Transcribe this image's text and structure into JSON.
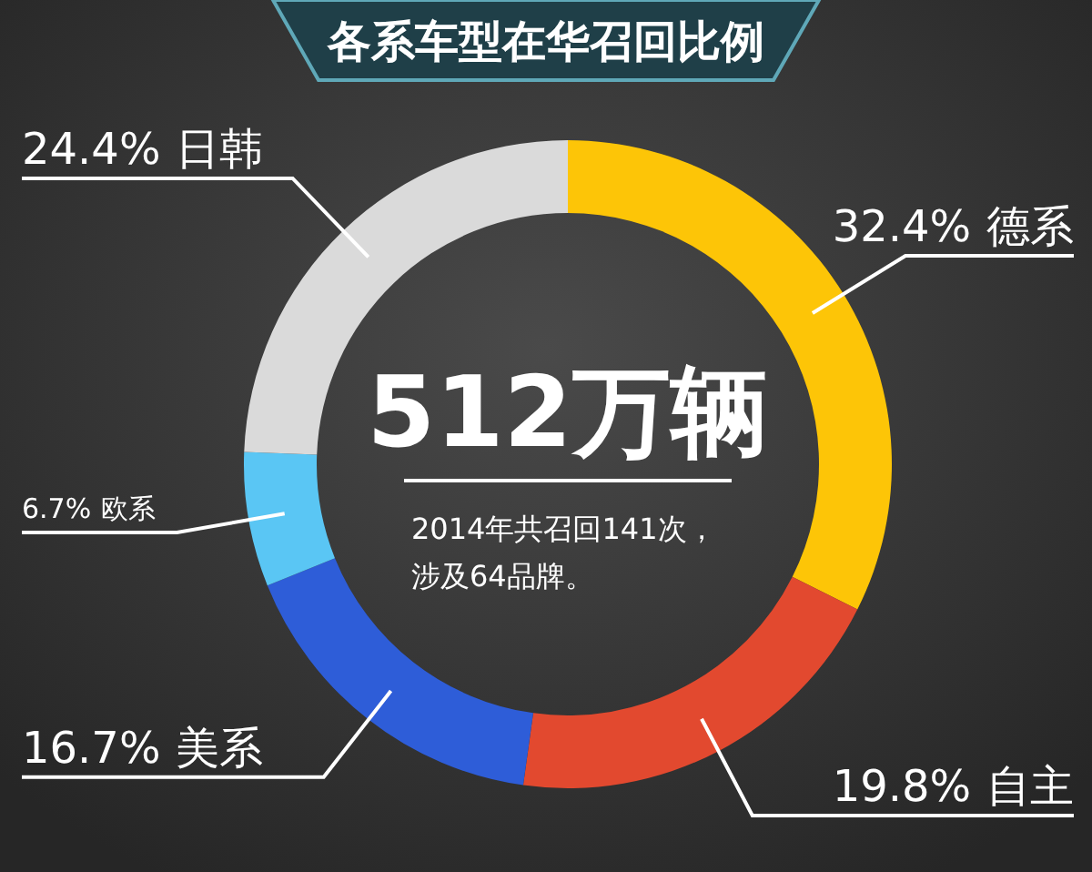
{
  "chart_data": {
    "type": "donut",
    "title": "各系车型在华召回比例",
    "categories": [
      "德系",
      "自主",
      "美系",
      "欧系",
      "日韩"
    ],
    "values": [
      32.4,
      19.8,
      16.7,
      6.7,
      24.4
    ],
    "colors": [
      "#fdc507",
      "#e2492f",
      "#2e5dd8",
      "#5ac6f4",
      "#dadada"
    ],
    "value_labels": [
      "32.4%",
      "19.8%",
      "16.7%",
      "6.7%",
      "24.4%"
    ],
    "annotations": [
      "512万辆",
      "2014年共召回141次，",
      "涉及64品牌。"
    ]
  }
}
